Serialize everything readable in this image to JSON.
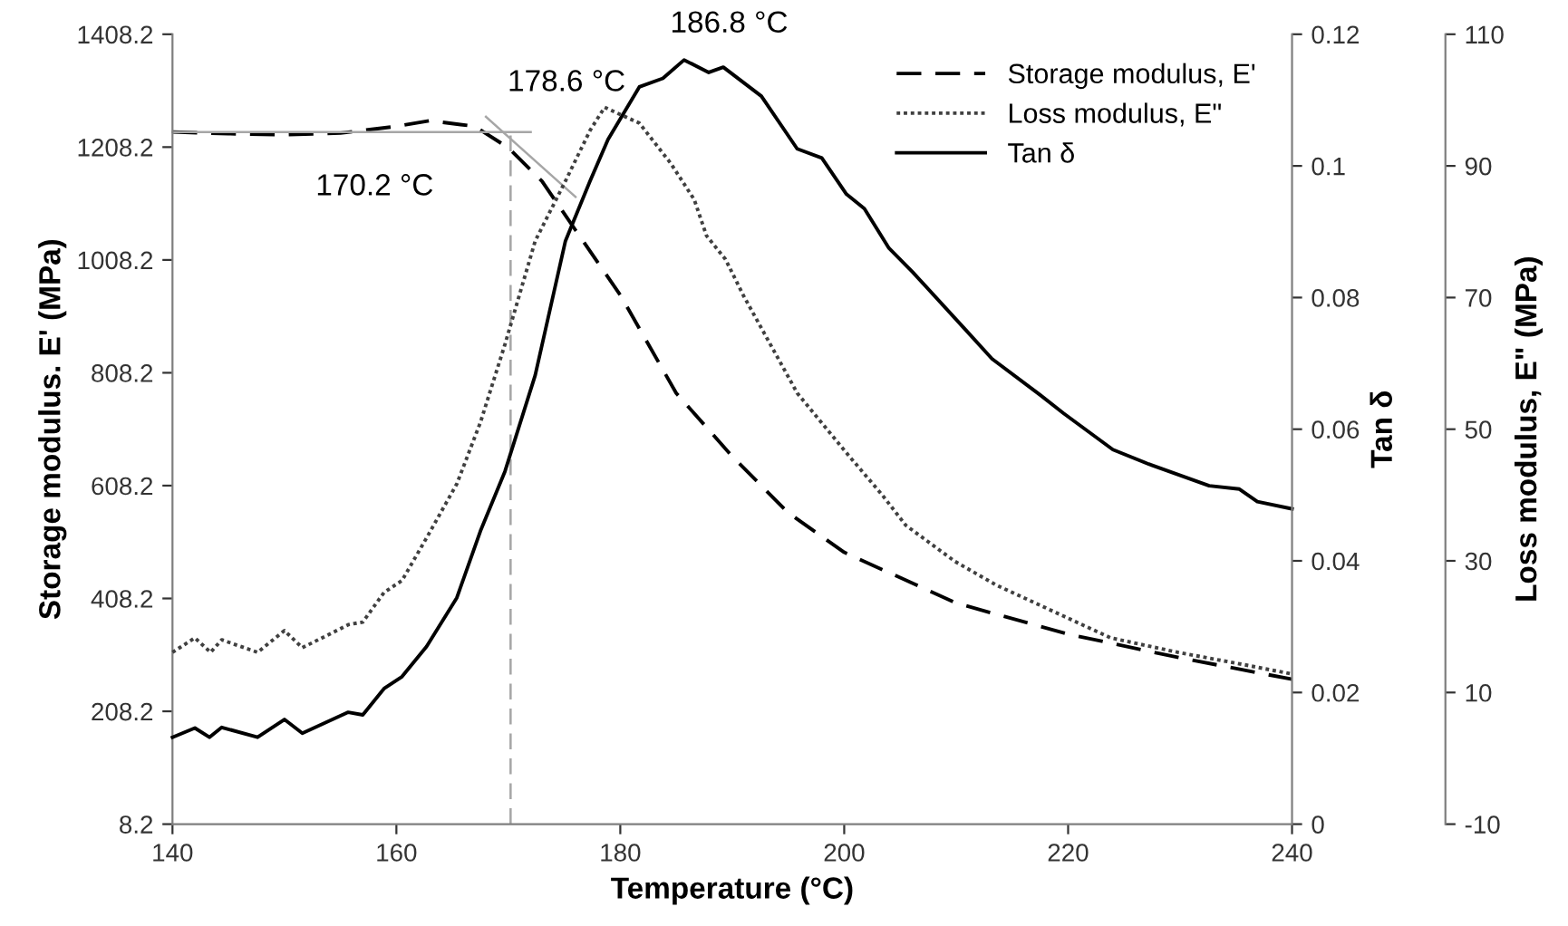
{
  "chart_data": {
    "type": "line",
    "xlabel": "Temperature (°C)",
    "ylabel": "Storage modulus. E' (MPa)",
    "y2label": "Tan δ",
    "y3label": "Loss modulus, E\" (MPa)",
    "xlim": [
      140,
      240
    ],
    "xticks": [
      140,
      160,
      180,
      200,
      220,
      240
    ],
    "ylim": [
      8.2,
      1408.2
    ],
    "yticks": [
      8.2,
      208.2,
      408.2,
      608.2,
      808.2,
      1008.2,
      1208.2,
      1408.2
    ],
    "y2lim": [
      0,
      0.12
    ],
    "y2ticks": [
      0,
      0.02,
      0.04,
      0.06,
      0.08,
      0.1,
      0.12
    ],
    "y3lim": [
      -10,
      110
    ],
    "y3ticks": [
      -10,
      10,
      30,
      50,
      70,
      90,
      110
    ],
    "legend": "top right",
    "grid": false,
    "marker": "none",
    "series": [
      {
        "name": "Storage modulus, E'",
        "color": "#000000",
        "line_style": "dashed",
        "axis": "y",
        "x": [
          140,
          145,
          150,
          155,
          160,
          163,
          167,
          170,
          173,
          176,
          180,
          185,
          190,
          195,
          200,
          210,
          220,
          230,
          240
        ],
        "values": [
          1235,
          1232,
          1230,
          1233,
          1245,
          1255,
          1245,
          1207,
          1148,
          1061,
          946,
          772,
          660,
          560,
          490,
          400,
          345,
          303,
          265
        ]
      },
      {
        "name": "Loss modulus, E\"",
        "color": "#404040",
        "line_style": "dotted",
        "axis": "y3",
        "x": [
          140,
          142,
          143.4,
          144.4,
          147.6,
          150,
          151.6,
          155.7,
          157,
          158.9,
          160.5,
          162.7,
          165.4,
          167.5,
          169.7,
          172.4,
          175.1,
          177.3,
          178.6,
          181.7,
          184.5,
          186.6,
          187.7,
          189.4,
          191,
          195.8,
          200.2,
          203.4,
          205.5,
          209.9,
          213.6,
          219.6,
          223.8,
          229.8,
          235.8,
          240
        ],
        "values": [
          16.1,
          18.3,
          16.1,
          18,
          16.1,
          19.4,
          16.8,
          20.3,
          20.7,
          25.2,
          27,
          33.5,
          41.7,
          51,
          62.9,
          78.6,
          87.7,
          95.4,
          98.9,
          96.5,
          90.4,
          84.9,
          79.4,
          75.8,
          70.3,
          55.5,
          46.4,
          40,
          35.4,
          29.9,
          26.3,
          21.6,
          18.3,
          16.1,
          14.2,
          12.8
        ]
      },
      {
        "name": "Tan δ",
        "color": "#000000",
        "line_style": "solid",
        "axis": "y2",
        "x": [
          140,
          142,
          143.3,
          144.4,
          147.6,
          150,
          151.6,
          155.7,
          157,
          158.9,
          160.5,
          162.7,
          165.4,
          167.5,
          169.7,
          172.4,
          175.1,
          177.3,
          178.9,
          181.7,
          183.8,
          185.7,
          187.9,
          189.2,
          192.6,
          195.8,
          198,
          200.2,
          201.8,
          204,
          206.1,
          211,
          213.2,
          217.5,
          219.6,
          224,
          227.2,
          232.6,
          235.3,
          236.9,
          240
        ],
        "values": [
          0.0132,
          0.0146,
          0.0132,
          0.0147,
          0.0132,
          0.0159,
          0.0138,
          0.017,
          0.0166,
          0.0206,
          0.0224,
          0.027,
          0.0344,
          0.0445,
          0.0536,
          0.0682,
          0.0886,
          0.0977,
          0.104,
          0.112,
          0.1133,
          0.1161,
          0.1142,
          0.115,
          0.1106,
          0.1026,
          0.1012,
          0.0957,
          0.0935,
          0.0875,
          0.0839,
          0.0748,
          0.0707,
          0.0652,
          0.0624,
          0.0569,
          0.0547,
          0.0514,
          0.0509,
          0.049,
          0.0479
        ]
      },
      {
        "color": "#a6a6a6",
        "line_style": "dashed",
        "axis": "y",
        "x": [
          170.2,
          170.2
        ],
        "values": [
          8.2,
          1235
        ]
      },
      {
        "color": "#a6a6a6",
        "line_style": "solid",
        "axis": "y",
        "x": [
          140,
          172
        ],
        "values": [
          1235,
          1235
        ]
      },
      {
        "color": "#a6a6a6",
        "line_style": "solid",
        "axis": "y",
        "x": [
          168,
          176
        ],
        "values": [
          1262,
          1120
        ]
      }
    ],
    "annotations": [
      {
        "text": "170.2 °C",
        "x": 170.2,
        "y": 1235
      },
      "178.6 °C",
      {
        "text": "186.8 °C",
        "x": 186.8,
        "y": 1363
      }
    ]
  }
}
